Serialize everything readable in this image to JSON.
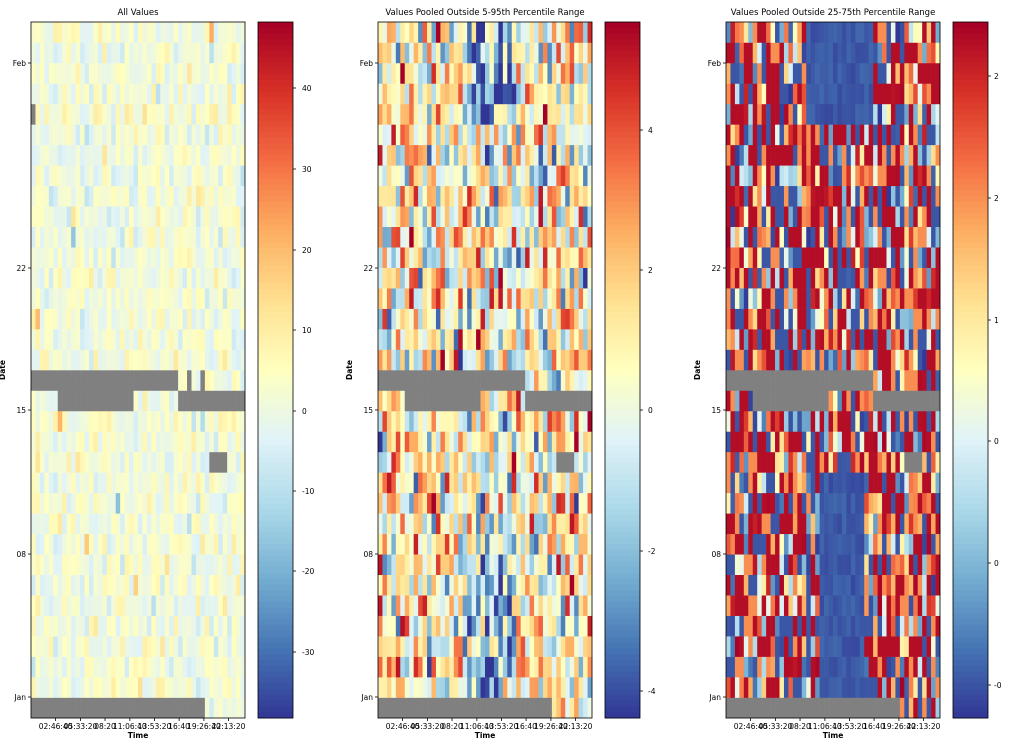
{
  "figure": {
    "background": "#ffffff",
    "missing_color": "#808080",
    "colormap": "RdYlBu_r",
    "colormap_stops": [
      "#313695",
      "#4575b4",
      "#74add1",
      "#abd9e9",
      "#e0f3f8",
      "#ffffbf",
      "#fee090",
      "#fdae61",
      "#f46d43",
      "#d73027",
      "#a50026"
    ]
  },
  "chart_data": [
    {
      "type": "heatmap",
      "title": "All Values",
      "xlabel": "Time",
      "ylabel": "Date",
      "x_ticklabels": [
        "02:46:40",
        "05:33:20",
        "08:20",
        "11:06:40",
        "13:53:20",
        "16:40",
        "19:26:40",
        "22:13:20"
      ],
      "y_ticklabels": [
        "Jan",
        "08",
        "15",
        "22",
        "Feb"
      ],
      "colorbar": {
        "ticklabels": [
          "-30",
          "-20",
          "-10",
          "0",
          "10",
          "20",
          "30",
          "40"
        ],
        "vmin": -37.5,
        "vmax": 48.5
      },
      "rows": 34,
      "cols": 48,
      "mostly_near": 2,
      "missing_blocks_note": "grey = missing data",
      "missing_blocks": [
        {
          "rows": [
            0,
            0
          ],
          "cols": [
            0,
            38
          ]
        },
        {
          "rows": [
            15,
            15
          ],
          "cols": [
            6,
            22
          ]
        },
        {
          "rows": [
            15,
            15
          ],
          "cols": [
            33,
            47
          ]
        },
        {
          "rows": [
            16,
            16
          ],
          "cols": [
            0,
            32
          ]
        },
        {
          "rows": [
            16,
            16
          ],
          "cols": [
            35,
            35
          ]
        },
        {
          "rows": [
            16,
            16
          ],
          "cols": [
            38,
            38
          ]
        },
        {
          "rows": [
            12,
            12
          ],
          "cols": [
            40,
            43
          ]
        },
        {
          "rows": [
            29,
            29
          ],
          "cols": [
            0,
            0
          ]
        }
      ]
    },
    {
      "type": "heatmap",
      "title": "Values Pooled Outside 5-95th Percentile Range",
      "xlabel": "Time",
      "ylabel": "Date",
      "x_ticklabels": [
        "02:46:40",
        "05:33:20",
        "08:20",
        "11:06:40",
        "13:53:20",
        "16:40",
        "19:26:40",
        "22:13:20"
      ],
      "y_ticklabels": [
        "Jan",
        "08",
        "15",
        "22",
        "Feb"
      ],
      "colorbar": {
        "ticklabels": [
          "-4",
          "-2",
          "0",
          "2",
          "4"
        ],
        "vmin": -4.8,
        "vmax": 5.6
      },
      "rows": 34,
      "cols": 48,
      "missing_blocks": [
        {
          "rows": [
            0,
            0
          ],
          "cols": [
            0,
            38
          ]
        },
        {
          "rows": [
            15,
            15
          ],
          "cols": [
            6,
            22
          ]
        },
        {
          "rows": [
            15,
            15
          ],
          "cols": [
            33,
            47
          ]
        },
        {
          "rows": [
            16,
            16
          ],
          "cols": [
            0,
            32
          ]
        },
        {
          "rows": [
            12,
            12
          ],
          "cols": [
            40,
            43
          ]
        }
      ]
    },
    {
      "type": "heatmap",
      "title": "Values Pooled Outside 25-75th Percentile Range",
      "xlabel": "Time",
      "ylabel": "Date",
      "x_ticklabels": [
        "02:46:40",
        "05:33:20",
        "08:20",
        "11:06:40",
        "13:53:20",
        "16:40",
        "19:26:40",
        "22:13:20"
      ],
      "y_ticklabels": [
        "Jan",
        "08",
        "15",
        "22",
        "Feb"
      ],
      "colorbar": {
        "ticklabels": [
          "-0",
          "0",
          "0",
          "1",
          "2",
          "2"
        ],
        "vmin": -0.5,
        "vmax": 2.4
      },
      "rows": 34,
      "cols": 48,
      "missing_blocks": [
        {
          "rows": [
            0,
            0
          ],
          "cols": [
            0,
            38
          ]
        },
        {
          "rows": [
            15,
            15
          ],
          "cols": [
            6,
            22
          ]
        },
        {
          "rows": [
            15,
            15
          ],
          "cols": [
            33,
            47
          ]
        },
        {
          "rows": [
            16,
            16
          ],
          "cols": [
            0,
            32
          ]
        },
        {
          "rows": [
            12,
            12
          ],
          "cols": [
            40,
            43
          ]
        }
      ]
    }
  ]
}
